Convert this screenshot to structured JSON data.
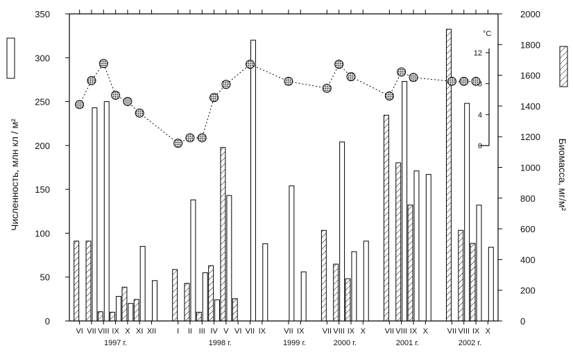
{
  "chart_data": {
    "type": "bar",
    "left_axis": {
      "title": "Численность, млн кл / м²",
      "min": 0,
      "max": 350,
      "ticks": [
        0,
        50,
        100,
        150,
        200,
        250,
        300,
        350
      ]
    },
    "right_axis": {
      "title": "Биомасса, мг/м²",
      "min": 0,
      "max": 2000,
      "ticks": [
        0,
        200,
        400,
        600,
        800,
        1000,
        1200,
        1400,
        1600,
        1800,
        2000
      ]
    },
    "temperature_axis": {
      "unit": "°C",
      "min": 0,
      "max": 12,
      "ticks": [
        0,
        4,
        8,
        12
      ]
    },
    "groups": [
      {
        "month": "VI",
        "year": "1997 г.",
        "abundance": null,
        "biomass": 520
      },
      {
        "month": "VII",
        "year": "1997 г.",
        "abundance": 243,
        "biomass": 520
      },
      {
        "month": "VIII",
        "year": "1997 г.",
        "abundance": 250,
        "biomass": 60
      },
      {
        "month": "IX",
        "year": "1997 г.",
        "abundance": 28,
        "biomass": 57
      },
      {
        "month": "X",
        "year": "1997 г.",
        "abundance": 20,
        "biomass": 220
      },
      {
        "month": "XI",
        "year": "1997 г.",
        "abundance": 85,
        "biomass": 140
      },
      {
        "month": "XII",
        "year": "1997 г.",
        "abundance": 46,
        "biomass": null
      },
      {
        "month": "I",
        "year": "1998 г.",
        "abundance": null,
        "biomass": 335
      },
      {
        "month": "II",
        "year": "1998 г.",
        "abundance": 138,
        "biomass": 245
      },
      {
        "month": "III",
        "year": "1998 г.",
        "abundance": 55,
        "biomass": 57
      },
      {
        "month": "IV",
        "year": "1998 г.",
        "abundance": 24,
        "biomass": 360
      },
      {
        "month": "V",
        "year": "1998 г.",
        "abundance": 143,
        "biomass": 1130
      },
      {
        "month": "VI",
        "year": "1998 г.",
        "abundance": null,
        "biomass": 145
      },
      {
        "month": "VII",
        "year": "1998 г.",
        "abundance": 320,
        "biomass": null
      },
      {
        "month": "IX",
        "year": "1998 г.",
        "abundance": 88,
        "biomass": null
      },
      {
        "month": "VII",
        "year": "1999 г.",
        "abundance": 154,
        "biomass": null
      },
      {
        "month": "IX",
        "year": "1999 г.",
        "abundance": 56,
        "biomass": null
      },
      {
        "month": "VII",
        "year": "2000 г.",
        "abundance": null,
        "biomass": 590
      },
      {
        "month": "VIII",
        "year": "2000 г.",
        "abundance": 204,
        "biomass": 370
      },
      {
        "month": "IX",
        "year": "2000 г.",
        "abundance": 79,
        "biomass": 275
      },
      {
        "month": "X",
        "year": "2000 г.",
        "abundance": 91,
        "biomass": null
      },
      {
        "month": "VII",
        "year": "2001 г.",
        "abundance": null,
        "biomass": 1340
      },
      {
        "month": "VIII",
        "year": "2001 г.",
        "abundance": 273,
        "biomass": 1030
      },
      {
        "month": "IX",
        "year": "2001 г.",
        "abundance": 171,
        "biomass": 755
      },
      {
        "month": "X",
        "year": "2001 г.",
        "abundance": 167,
        "biomass": null
      },
      {
        "month": "VII",
        "year": "2002 г.",
        "abundance": null,
        "biomass": 1900
      },
      {
        "month": "VIII",
        "year": "2002 г.",
        "abundance": 248,
        "biomass": 590
      },
      {
        "month": "IX",
        "year": "2002 г.",
        "abundance": 132,
        "biomass": 505
      },
      {
        "month": "X",
        "year": "2002 г.",
        "abundance": 84,
        "biomass": null
      }
    ],
    "temperature_series": [
      {
        "group": 0,
        "value": 5.3
      },
      {
        "group": 1,
        "value": 8.4
      },
      {
        "group": 2,
        "value": 10.6
      },
      {
        "group": 3,
        "value": 6.5
      },
      {
        "group": 4,
        "value": 5.7
      },
      {
        "group": 5,
        "value": 4.2
      },
      {
        "group": 7,
        "value": 0.3
      },
      {
        "group": 8,
        "value": 1.0
      },
      {
        "group": 9,
        "value": 1.0
      },
      {
        "group": 10,
        "value": 6.2
      },
      {
        "group": 11,
        "value": 7.9
      },
      {
        "group": 13,
        "value": 10.5
      },
      {
        "group": 15,
        "value": 8.3
      },
      {
        "group": 17,
        "value": 7.4
      },
      {
        "group": 18,
        "value": 10.5
      },
      {
        "group": 19,
        "value": 8.9
      },
      {
        "group": 21,
        "value": 6.4
      },
      {
        "group": 22,
        "value": 9.5
      },
      {
        "group": 23,
        "value": 8.8
      },
      {
        "group": 25,
        "value": 8.3
      },
      {
        "group": 26,
        "value": 8.3
      },
      {
        "group": 27,
        "value": 8.3
      }
    ],
    "year_labels": [
      "1997 г.",
      "1998 г.",
      "1999 г.",
      "2000 г.",
      "2001 г.",
      "2002 г."
    ],
    "legend_left": "open bars = abundance",
    "legend_right": "hatched bars = biomass"
  }
}
